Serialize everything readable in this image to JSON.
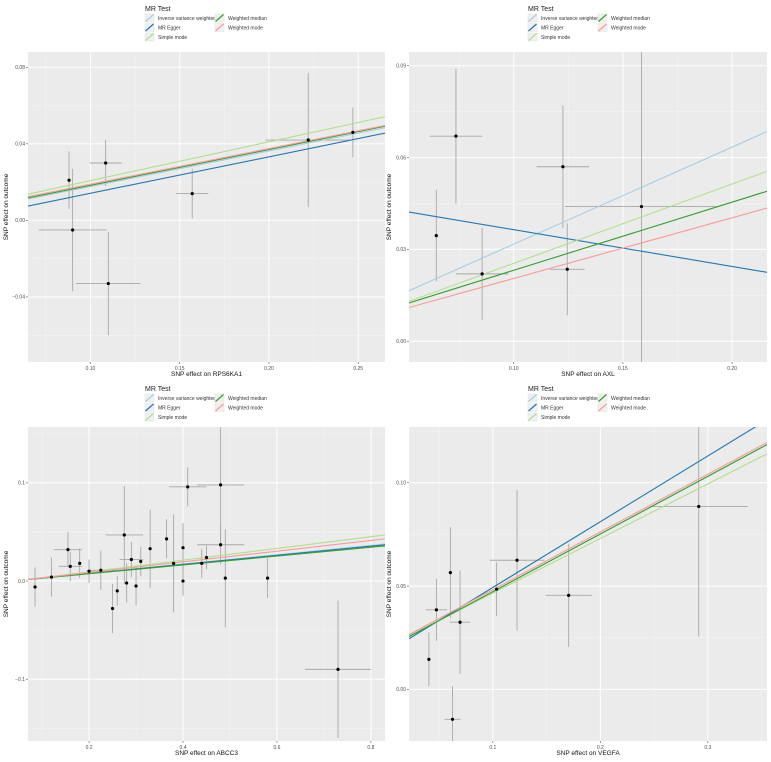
{
  "legend": {
    "title": "MR Test",
    "items": [
      {
        "label": "Inverse variance weighted",
        "color": "#a6cee3"
      },
      {
        "label": "MR Egger",
        "color": "#1f78b4"
      },
      {
        "label": "Simple mode",
        "color": "#b2df8a"
      },
      {
        "label": "Weighted median",
        "color": "#33a02c"
      },
      {
        "label": "Weighted mode",
        "color": "#fb9a99"
      }
    ]
  },
  "chart_data": [
    {
      "type": "scatter",
      "xlabel": "SNP effect on RPS6KA1",
      "ylabel": "SNP effect on outcome",
      "xlim": [
        0.065,
        0.265
      ],
      "ylim": [
        -0.074,
        0.088
      ],
      "xticks": [
        0.1,
        0.15,
        0.2,
        0.25
      ],
      "xticklabels": [
        "0.10",
        "0.15",
        "0.20",
        "0.25"
      ],
      "yticks": [
        -0.04,
        0.0,
        0.04,
        0.08
      ],
      "yticklabels": [
        "−0.04",
        "0.00",
        "0.04",
        "0.08"
      ],
      "points": [
        {
          "x": 0.088,
          "y": 0.021,
          "xerr": 0.0,
          "yerr": 0.015
        },
        {
          "x": 0.1085,
          "y": 0.03,
          "xerr": 0.009,
          "yerr": 0.012
        },
        {
          "x": 0.09,
          "y": -0.005,
          "xerr": 0.019,
          "yerr": 0.032
        },
        {
          "x": 0.11,
          "y": -0.033,
          "xerr": 0.018,
          "yerr": 0.027
        },
        {
          "x": 0.157,
          "y": 0.014,
          "xerr": 0.009,
          "yerr": 0.013
        },
        {
          "x": 0.222,
          "y": 0.042,
          "xerr": 0.024,
          "yerr": 0.035
        },
        {
          "x": 0.247,
          "y": 0.046,
          "xerr": 0.0,
          "yerr": 0.013
        }
      ],
      "lines": [
        {
          "method": "Inverse variance weighted",
          "y_start": 0.0112,
          "y_end": 0.0484
        },
        {
          "method": "MR Egger",
          "y_start": 0.0075,
          "y_end": 0.0456
        },
        {
          "method": "Simple mode",
          "y_start": 0.0137,
          "y_end": 0.0542
        },
        {
          "method": "Weighted median",
          "y_start": 0.0118,
          "y_end": 0.0492
        },
        {
          "method": "Weighted mode",
          "y_start": 0.0124,
          "y_end": 0.0496
        }
      ]
    },
    {
      "type": "scatter",
      "xlabel": "SNP effect on AXL",
      "ylabel": "SNP effect on outcome",
      "xlim": [
        0.052,
        0.216
      ],
      "ylim": [
        -0.0068,
        0.0945
      ],
      "xticks": [
        0.1,
        0.15,
        0.2
      ],
      "xticklabels": [
        "0.10",
        "0.15",
        "0.20"
      ],
      "yticks": [
        0.0,
        0.03,
        0.06,
        0.09
      ],
      "yticklabels": [
        "0.00",
        "0.03",
        "0.06",
        "0.09"
      ],
      "points": [
        {
          "x": 0.0645,
          "y": 0.0345,
          "xerr": 0.0,
          "yerr": 0.015
        },
        {
          "x": 0.0735,
          "y": 0.067,
          "xerr": 0.012,
          "yerr": 0.022
        },
        {
          "x": 0.0855,
          "y": 0.022,
          "xerr": 0.012,
          "yerr": 0.015
        },
        {
          "x": 0.1225,
          "y": 0.057,
          "xerr": 0.012,
          "yerr": 0.02
        },
        {
          "x": 0.1245,
          "y": 0.0235,
          "xerr": 0.008,
          "yerr": 0.015
        },
        {
          "x": 0.1585,
          "y": 0.044,
          "xerr": 0.035,
          "yerr": 0.065
        }
      ],
      "lines": [
        {
          "method": "Inverse variance weighted",
          "y_start": 0.0165,
          "y_end": 0.0685
        },
        {
          "method": "MR Egger",
          "y_start": 0.0422,
          "y_end": 0.0225
        },
        {
          "method": "Simple mode",
          "y_start": 0.013,
          "y_end": 0.0555
        },
        {
          "method": "Weighted median",
          "y_start": 0.0125,
          "y_end": 0.049
        },
        {
          "method": "Weighted mode",
          "y_start": 0.011,
          "y_end": 0.0435
        }
      ]
    },
    {
      "type": "scatter",
      "xlabel": "SNP effect on ABCC3",
      "ylabel": "SNP effect on outcome",
      "xlim": [
        0.07,
        0.83
      ],
      "ylim": [
        -0.163,
        0.157
      ],
      "xticks": [
        0.2,
        0.4,
        0.6,
        0.8
      ],
      "xticklabels": [
        "0.2",
        "0.4",
        "0.6",
        "0.8"
      ],
      "yticks": [
        -0.1,
        0.0,
        0.1
      ],
      "yticklabels": [
        "−0.1",
        "0.0",
        "0.1"
      ],
      "points": [
        {
          "x": 0.085,
          "y": -0.006,
          "xerr": 0.0,
          "yerr": 0.02
        },
        {
          "x": 0.12,
          "y": 0.004,
          "xerr": 0.0,
          "yerr": 0.02
        },
        {
          "x": 0.155,
          "y": 0.032,
          "xerr": 0.03,
          "yerr": 0.018
        },
        {
          "x": 0.16,
          "y": 0.015,
          "xerr": 0.025,
          "yerr": 0.015
        },
        {
          "x": 0.18,
          "y": 0.018,
          "xerr": 0.0,
          "yerr": 0.015
        },
        {
          "x": 0.2,
          "y": 0.01,
          "xerr": 0.0,
          "yerr": 0.012
        },
        {
          "x": 0.225,
          "y": 0.011,
          "xerr": 0.03,
          "yerr": 0.02
        },
        {
          "x": 0.25,
          "y": -0.028,
          "xerr": 0.0,
          "yerr": 0.025
        },
        {
          "x": 0.26,
          "y": -0.01,
          "xerr": 0.0,
          "yerr": 0.015
        },
        {
          "x": 0.275,
          "y": 0.047,
          "xerr": 0.04,
          "yerr": 0.05
        },
        {
          "x": 0.28,
          "y": -0.002,
          "xerr": 0.0,
          "yerr": 0.02
        },
        {
          "x": 0.29,
          "y": 0.022,
          "xerr": 0.025,
          "yerr": 0.018
        },
        {
          "x": 0.3,
          "y": -0.005,
          "xerr": 0.0,
          "yerr": 0.02
        },
        {
          "x": 0.31,
          "y": 0.02,
          "xerr": 0.0,
          "yerr": 0.015
        },
        {
          "x": 0.33,
          "y": 0.033,
          "xerr": 0.0,
          "yerr": 0.04
        },
        {
          "x": 0.365,
          "y": 0.043,
          "xerr": 0.0,
          "yerr": 0.02
        },
        {
          "x": 0.38,
          "y": 0.018,
          "xerr": 0.0,
          "yerr": 0.05
        },
        {
          "x": 0.4,
          "y": 0.034,
          "xerr": 0.0,
          "yerr": 0.025
        },
        {
          "x": 0.4,
          "y": 0.0,
          "xerr": 0.0,
          "yerr": 0.015
        },
        {
          "x": 0.41,
          "y": 0.096,
          "xerr": 0.04,
          "yerr": 0.02
        },
        {
          "x": 0.44,
          "y": 0.018,
          "xerr": 0.0,
          "yerr": 0.015
        },
        {
          "x": 0.45,
          "y": 0.024,
          "xerr": 0.0,
          "yerr": 0.012
        },
        {
          "x": 0.48,
          "y": 0.098,
          "xerr": 0.05,
          "yerr": 0.06
        },
        {
          "x": 0.48,
          "y": 0.037,
          "xerr": 0.05,
          "yerr": 0.02
        },
        {
          "x": 0.49,
          "y": 0.003,
          "xerr": 0.0,
          "yerr": 0.05
        },
        {
          "x": 0.58,
          "y": 0.003,
          "xerr": 0.0,
          "yerr": 0.02
        },
        {
          "x": 0.73,
          "y": -0.09,
          "xerr": 0.07,
          "yerr": 0.07
        }
      ],
      "lines": [
        {
          "method": "Inverse variance weighted",
          "y_start": 0.0016,
          "y_end": 0.0378
        },
        {
          "method": "MR Egger",
          "y_start": 0.0016,
          "y_end": 0.037
        },
        {
          "method": "Simple mode",
          "y_start": 0.0016,
          "y_end": 0.047
        },
        {
          "method": "Weighted median",
          "y_start": 0.0016,
          "y_end": 0.0358
        },
        {
          "method": "Weighted mode",
          "y_start": 0.0016,
          "y_end": 0.043
        }
      ]
    },
    {
      "type": "scatter",
      "xlabel": "SNP effect on VEGFA",
      "ylabel": "SNP effect on outcome",
      "xlim": [
        0.022,
        0.355
      ],
      "ylim": [
        -0.025,
        0.127
      ],
      "xticks": [
        0.1,
        0.2,
        0.3
      ],
      "xticklabels": [
        "0.1",
        "0.2",
        "0.3"
      ],
      "yticks": [
        0.0,
        0.05,
        0.1
      ],
      "yticklabels": [
        "0.00",
        "0.05",
        "0.10"
      ],
      "points": [
        {
          "x": 0.0405,
          "y": 0.0145,
          "xerr": 0.0,
          "yerr": 0.013
        },
        {
          "x": 0.0475,
          "y": 0.0385,
          "xerr": 0.01,
          "yerr": 0.015
        },
        {
          "x": 0.0605,
          "y": 0.0565,
          "xerr": 0.0,
          "yerr": 0.022
        },
        {
          "x": 0.0625,
          "y": -0.0145,
          "xerr": 0.0075,
          "yerr": 0.016
        },
        {
          "x": 0.0695,
          "y": 0.0325,
          "xerr": 0.0095,
          "yerr": 0.025
        },
        {
          "x": 0.1035,
          "y": 0.0485,
          "xerr": 0.0,
          "yerr": 0.013
        },
        {
          "x": 0.1225,
          "y": 0.0625,
          "xerr": 0.0255,
          "yerr": 0.034
        },
        {
          "x": 0.1705,
          "y": 0.0455,
          "xerr": 0.0215,
          "yerr": 0.025
        },
        {
          "x": 0.2915,
          "y": 0.0885,
          "xerr": 0.0455,
          "yerr": 0.063
        }
      ],
      "lines": [
        {
          "method": "Inverse variance weighted",
          "y_start": 0.0255,
          "y_end": 0.1185
        },
        {
          "method": "MR Egger",
          "y_start": 0.0245,
          "y_end": 0.1305
        },
        {
          "method": "Simple mode",
          "y_start": 0.026,
          "y_end": 0.114
        },
        {
          "method": "Weighted median",
          "y_start": 0.0255,
          "y_end": 0.1185
        },
        {
          "method": "Weighted mode",
          "y_start": 0.0265,
          "y_end": 0.1195
        }
      ]
    }
  ]
}
